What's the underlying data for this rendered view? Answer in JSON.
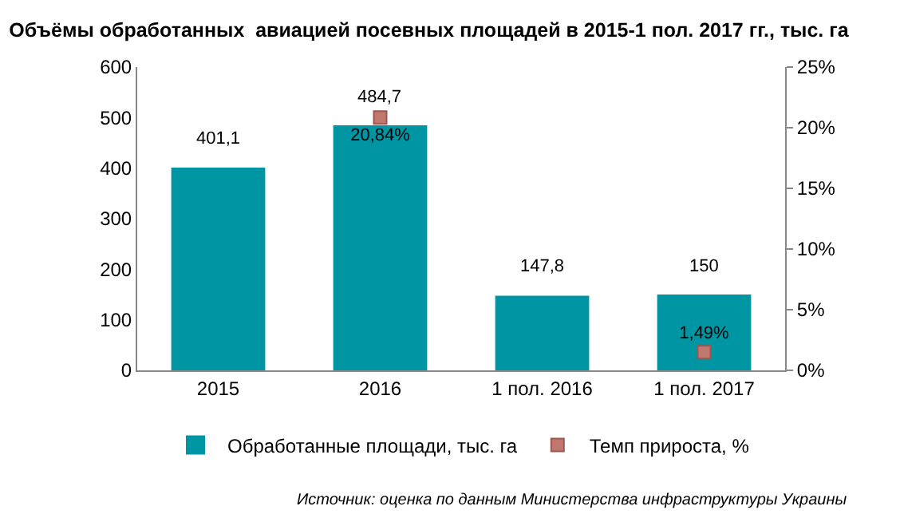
{
  "chart_data": {
    "type": "bar",
    "title": "Объёмы обработанных  авиацией посевных площадей в 2015-1 пол. 2017 гг., тыс. га",
    "categories": [
      "2015",
      "2016",
      "1 пол. 2016",
      "1 пол. 2017"
    ],
    "series": [
      {
        "name": "Обработанные площади, тыс. га",
        "color": "#0095a3",
        "values": [
          401.1,
          484.7,
          147.8,
          150
        ],
        "value_labels": [
          "401,1",
          "484,7",
          "147,8",
          "150"
        ]
      },
      {
        "name": "Темп прироста, %",
        "type": "scatter",
        "axis": "y2",
        "color": "#c0786e",
        "marker": "square",
        "values": [
          null,
          20.84,
          null,
          1.49
        ],
        "value_labels": [
          null,
          "20,84%",
          null,
          "1,49%"
        ]
      }
    ],
    "ylim": [
      0,
      600
    ],
    "yticks": [
      0,
      100,
      200,
      300,
      400,
      500,
      600
    ],
    "y2lim": [
      0,
      25
    ],
    "y2ticks": [
      {
        "value": 0,
        "label": "0%"
      },
      {
        "value": 5,
        "label": "5%"
      },
      {
        "value": 10,
        "label": "10%"
      },
      {
        "value": 15,
        "label": "15%"
      },
      {
        "value": 20,
        "label": "20%"
      },
      {
        "value": 25,
        "label": "25%"
      }
    ],
    "grid": false,
    "legend": "bottom",
    "annotations": [
      "Источник: оценка по данным Министерства инфраструктуры Украины"
    ]
  }
}
